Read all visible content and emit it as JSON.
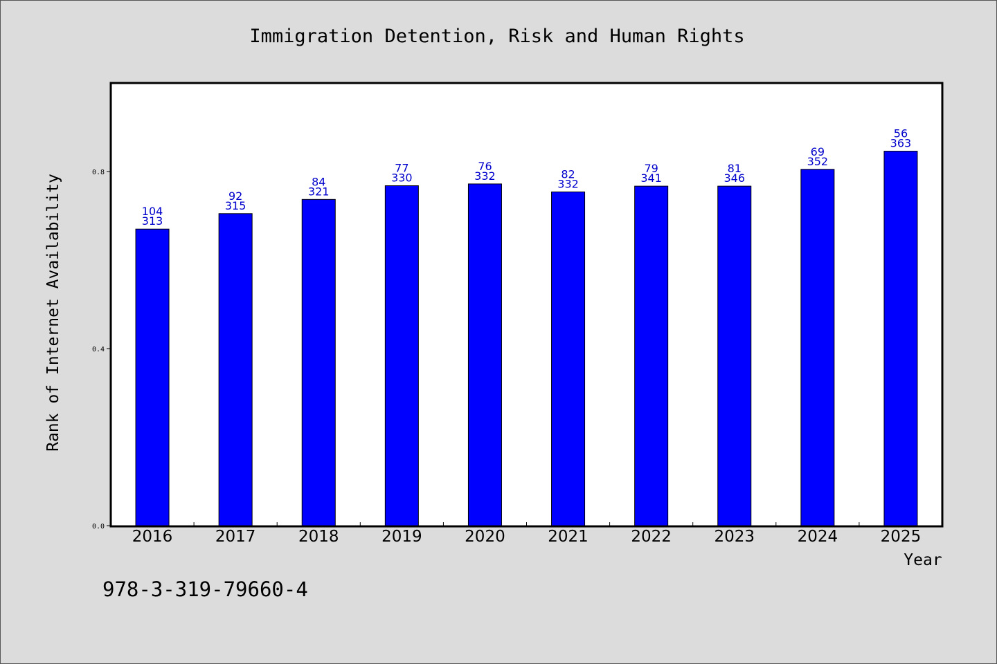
{
  "chart_data": {
    "type": "bar",
    "title": "Immigration Detention, Risk and Human Rights",
    "xlabel": "Year",
    "ylabel": "Rank of Internet Availability",
    "categories": [
      "2016",
      "2017",
      "2018",
      "2019",
      "2020",
      "2021",
      "2022",
      "2023",
      "2024",
      "2025"
    ],
    "values": [
      0.67,
      0.705,
      0.737,
      0.768,
      0.772,
      0.754,
      0.767,
      0.767,
      0.805,
      0.846
    ],
    "labels_top": [
      "104",
      "92",
      "84",
      "77",
      "76",
      "82",
      "79",
      "81",
      "69",
      "56"
    ],
    "labels_bottom": [
      "313",
      "315",
      "321",
      "330",
      "332",
      "332",
      "341",
      "346",
      "352",
      "363"
    ],
    "yticks": [
      "0.0",
      "0.4",
      "0.8"
    ],
    "ylim": [
      0,
      1.0
    ],
    "bar_color": "#0000ff",
    "label_color": "#0000cc",
    "grid": false,
    "legend": "none"
  },
  "footnote": "978-3-319-79660-4"
}
